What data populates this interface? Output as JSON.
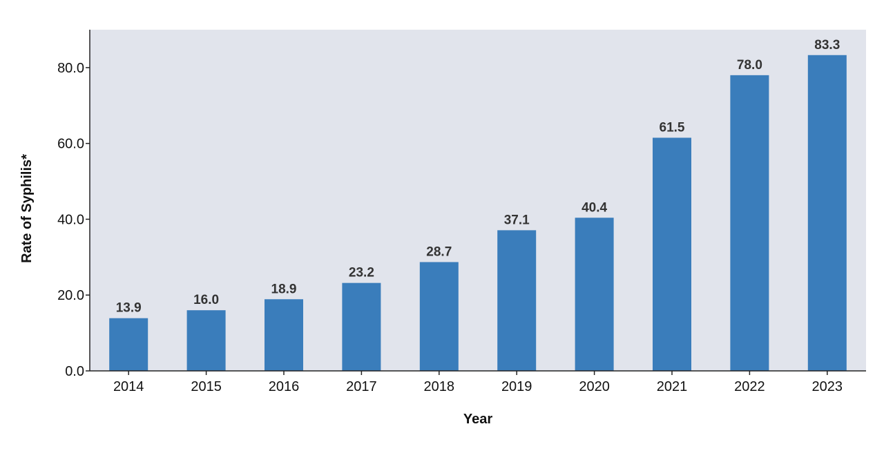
{
  "chart_data": {
    "type": "bar",
    "categories": [
      "2014",
      "2015",
      "2016",
      "2017",
      "2018",
      "2019",
      "2020",
      "2021",
      "2022",
      "2023"
    ],
    "values": [
      13.9,
      16.0,
      18.9,
      23.2,
      28.7,
      37.1,
      40.4,
      61.5,
      78.0,
      83.3
    ],
    "value_labels": [
      "13.9",
      "16.0",
      "18.9",
      "23.2",
      "28.7",
      "37.1",
      "40.4",
      "61.5",
      "78.0",
      "83.3"
    ],
    "xlabel": "Year",
    "ylabel": "Rate of Syphilis*",
    "ylim": [
      0,
      90
    ],
    "yticks": [
      0,
      20,
      40,
      60,
      80
    ],
    "ytick_labels": [
      "0.0",
      "20.0",
      "40.0",
      "60.0",
      "80.0"
    ],
    "grid": false,
    "colors": {
      "bar": "#3a7dbb",
      "plot_background": "#e1e4ec",
      "axis": "#222222"
    }
  }
}
